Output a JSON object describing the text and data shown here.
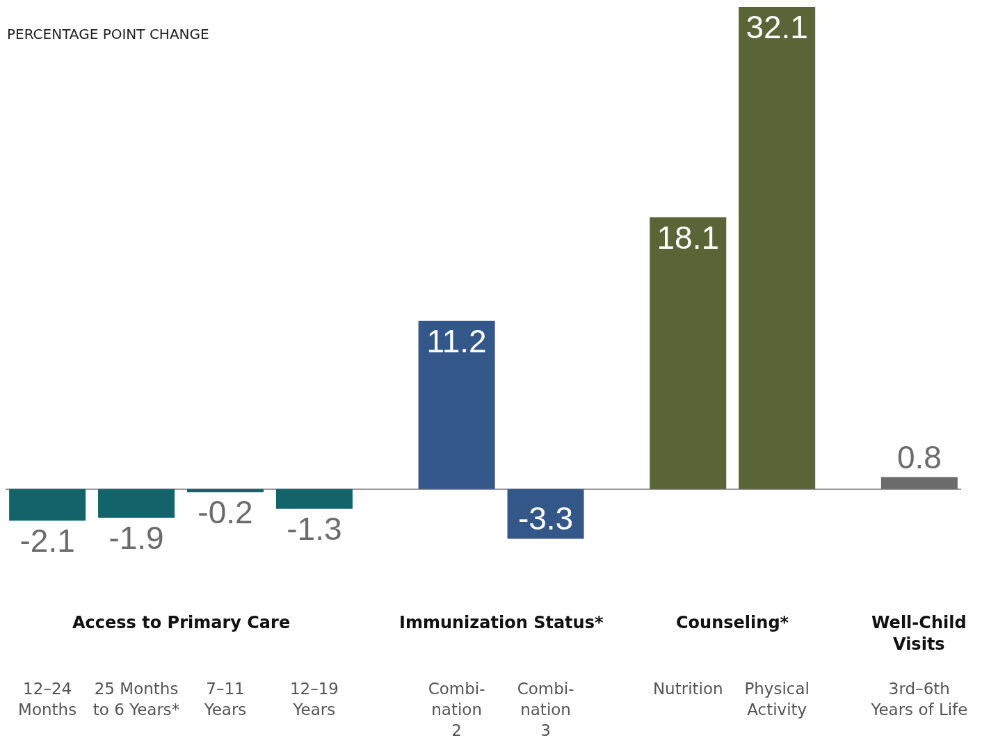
{
  "chart_data": {
    "type": "bar",
    "title": "PERCENTAGE POINT CHANGE",
    "categories": [
      "12–24\nMonths",
      "25 Months\nto 6 Years*",
      "7–11\nYears",
      "12–19\nYears",
      "Combi-\nnation\n2",
      "Combi-\nnation\n3",
      "Nutrition",
      "Physical\nActivity",
      "3rd–6th\nYears of Life"
    ],
    "values": [
      -2.1,
      -1.9,
      -0.2,
      -1.3,
      11.2,
      -3.3,
      18.1,
      32.1,
      0.8
    ],
    "colors": [
      "#13636a",
      "#13636a",
      "#13636a",
      "#13636a",
      "#34578a",
      "#34578a",
      "#596437",
      "#596437",
      "#6b6b6b"
    ],
    "data_labels": true,
    "annotations": [
      "Access to Primary Care",
      "Immunization Status*",
      "Counseling*",
      "Well-Child\nVisits"
    ]
  }
}
